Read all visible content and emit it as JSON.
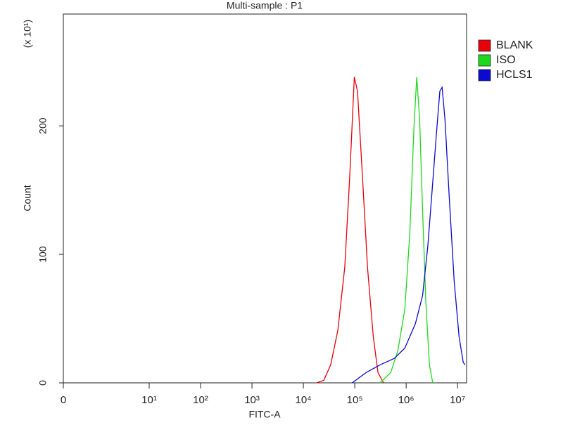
{
  "chart_data": {
    "type": "line",
    "title": "Multi-sample : P1",
    "x_label": "FITC-A",
    "y_label": "Count",
    "y_multiplier": "(x 10¹)",
    "xscale": "log",
    "xlim": [
      0,
      15000000
    ],
    "xticks": [
      0,
      {
        "value": 10,
        "label": "10¹"
      },
      {
        "value": 100,
        "label": "10²"
      },
      {
        "value": 1000,
        "label": "10³"
      },
      {
        "value": 10000,
        "label": "10⁴"
      },
      {
        "value": 100000,
        "label": "10⁵"
      },
      {
        "value": 1000000,
        "label": "10⁶"
      },
      {
        "value": 10000000,
        "label": "10⁷"
      }
    ],
    "ylim": [
      0,
      287
    ],
    "yticks": [
      0,
      100,
      200
    ],
    "legend": "right",
    "series": [
      {
        "name": "BLANK",
        "color": "#e8000b",
        "x": [
          18200,
          25000,
          34000,
          47000,
          64000,
          80000,
          98000,
          113000,
          141000,
          177000,
          229000,
          283000,
          363000
        ],
        "values": [
          0,
          2,
          14,
          41,
          90,
          161,
          238,
          227,
          161,
          90,
          36,
          8,
          0
        ]
      },
      {
        "name": "ISO",
        "color": "#1ed81e",
        "x": [
          309000,
          501000,
          690000,
          940000,
          1180000,
          1420000,
          1610000,
          1830000,
          2090000,
          2420000,
          2840000,
          3290000
        ],
        "values": [
          0,
          8,
          25,
          57,
          117,
          199,
          238,
          205,
          134,
          63,
          14,
          0
        ]
      },
      {
        "name": "HCLS1",
        "color": "#0a0ad0",
        "x": [
          89000,
          166000,
          309000,
          589000,
          940000,
          1510000,
          2090000,
          2650000,
          3290000,
          3860000,
          4520000,
          5000000,
          5690000,
          6880000,
          8600000,
          10700000,
          12900000,
          14000000
        ],
        "values": [
          0,
          8,
          14,
          19,
          27,
          46,
          68,
          107,
          156,
          193,
          227,
          230,
          205,
          145,
          79,
          36,
          16,
          14
        ]
      }
    ]
  }
}
